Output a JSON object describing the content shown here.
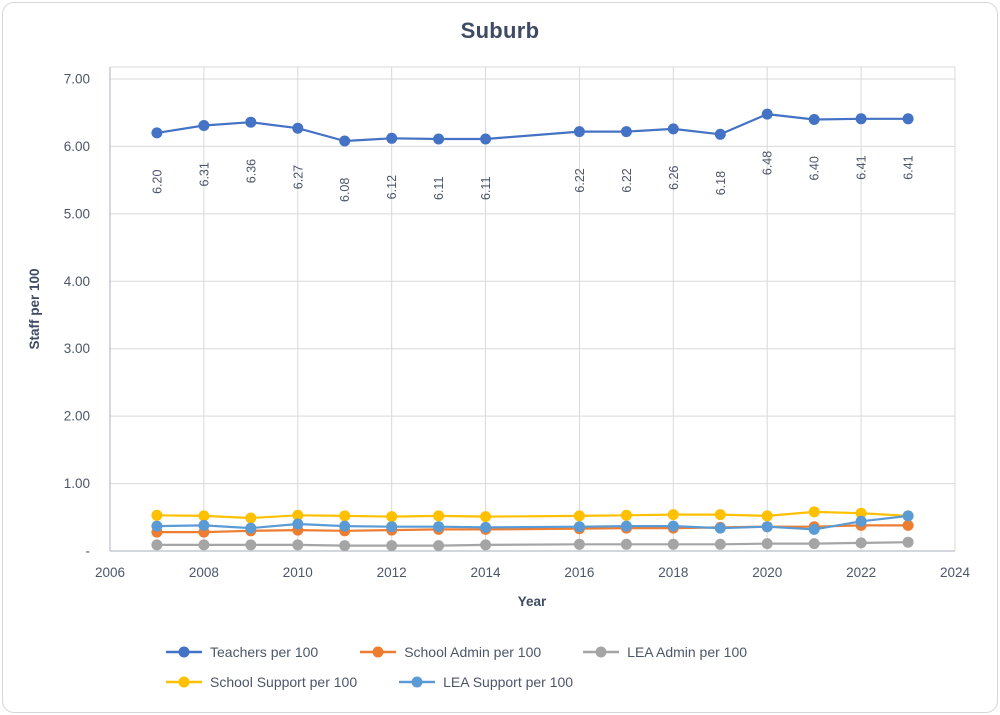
{
  "chart": {
    "title": "Suburb",
    "x_axis": {
      "title": "Year",
      "ticks": [
        {
          "label": "2006",
          "value": 2006
        },
        {
          "label": "2008",
          "value": 2008
        },
        {
          "label": "2010",
          "value": 2010
        },
        {
          "label": "2012",
          "value": 2012
        },
        {
          "label": "2014",
          "value": 2014
        },
        {
          "label": "2016",
          "value": 2016
        },
        {
          "label": "2018",
          "value": 2018
        },
        {
          "label": "2020",
          "value": 2020
        },
        {
          "label": "2022",
          "value": 2022
        },
        {
          "label": "2024",
          "value": 2024
        }
      ]
    },
    "y_axis": {
      "title": "Staff per 100",
      "ticks": [
        {
          "label": "7.00",
          "value": 7
        },
        {
          "label": "6.00",
          "value": 6
        },
        {
          "label": "5.00",
          "value": 5
        },
        {
          "label": "4.00",
          "value": 4
        },
        {
          "label": "3.00",
          "value": 3
        },
        {
          "label": "2.00",
          "value": 2
        },
        {
          "label": "1.00",
          "value": 1
        },
        {
          "label": "-",
          "value": 0
        }
      ]
    },
    "colors": {
      "grid": "#d9d9d9",
      "plot_border": "#d9d9d9",
      "axis_line": "#b9bec7",
      "tick_text": "#4c5669",
      "data_label_text": "#4c5669",
      "title_text": "#3e4b63"
    }
  },
  "chart_data": {
    "type": "line",
    "title": "Suburb",
    "xlabel": "Year",
    "ylabel": "Staff per 100",
    "xlim": [
      2006,
      2024
    ],
    "ylim": [
      0,
      7
    ],
    "grid": true,
    "legend_position": "bottom",
    "x": [
      2007,
      2008,
      2009,
      2010,
      2011,
      2012,
      2013,
      2014,
      2015,
      2016,
      2017,
      2018,
      2019,
      2020,
      2021,
      2022,
      2023
    ],
    "series": [
      {
        "name": "Teachers per 100",
        "color": "#4472c4",
        "values": [
          6.2,
          6.31,
          6.36,
          6.27,
          6.08,
          6.12,
          6.11,
          6.11,
          null,
          6.22,
          6.22,
          6.26,
          6.18,
          6.48,
          6.4,
          6.41,
          6.41
        ],
        "data_labels": [
          "6.20",
          "6.31",
          "6.36",
          "6.27",
          "6.08",
          "6.12",
          "6.11",
          "6.11",
          null,
          "6.22",
          "6.22",
          "6.26",
          "6.18",
          "6.48",
          "6.40",
          "6.41",
          "6.41"
        ]
      },
      {
        "name": "School Admin per 100",
        "color": "#ed7d31",
        "values": [
          0.28,
          0.28,
          0.3,
          0.31,
          0.3,
          0.31,
          0.32,
          0.32,
          null,
          0.33,
          0.34,
          0.34,
          0.35,
          0.36,
          0.36,
          0.38,
          0.38
        ]
      },
      {
        "name": "LEA Admin per 100",
        "color": "#a5a5a5",
        "values": [
          0.09,
          0.09,
          0.09,
          0.09,
          0.08,
          0.08,
          0.08,
          0.09,
          null,
          0.1,
          0.1,
          0.1,
          0.1,
          0.11,
          0.11,
          0.12,
          0.13
        ]
      },
      {
        "name": "School Support per 100",
        "color": "#ffc000",
        "values": [
          0.53,
          0.52,
          0.49,
          0.53,
          0.52,
          0.51,
          0.52,
          0.51,
          null,
          0.52,
          0.53,
          0.54,
          0.54,
          0.52,
          0.58,
          0.56,
          0.52
        ]
      },
      {
        "name": "LEA Support per 100",
        "color": "#5b9bd5",
        "values": [
          0.37,
          0.38,
          0.34,
          0.4,
          0.37,
          0.36,
          0.36,
          0.35,
          null,
          0.36,
          0.37,
          0.37,
          0.34,
          0.36,
          0.32,
          0.44,
          0.52
        ]
      }
    ]
  }
}
